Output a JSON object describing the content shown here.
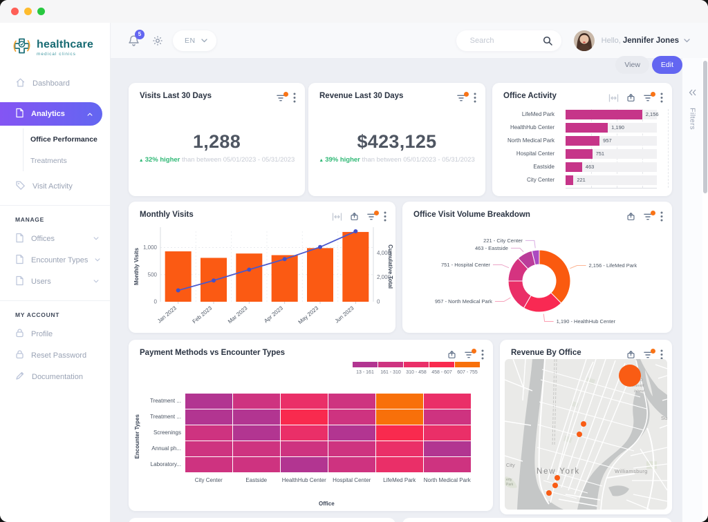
{
  "topbar": {
    "badge": "5",
    "language": "EN",
    "search_placeholder": "Search",
    "greeting": "Hello,",
    "user": "Jennifer Jones"
  },
  "toolbar": {
    "view": "View",
    "edit": "Edit"
  },
  "rail": {
    "label": "Filters"
  },
  "sidebar": {
    "logo_title": "healthcare",
    "logo_subtitle": "medical clinics",
    "items": [
      {
        "label": "Dashboard",
        "icon": "home"
      },
      {
        "label": "Analytics",
        "icon": "file",
        "active": true,
        "chevron": "up",
        "children": [
          {
            "label": "Office Performance",
            "active": true
          },
          {
            "label": "Treatments",
            "active": false
          }
        ]
      },
      {
        "label": "Visit Activity",
        "icon": "tag"
      }
    ],
    "sections": [
      {
        "header": "MANAGE",
        "items": [
          {
            "label": "Offices",
            "icon": "file",
            "chevron": "down"
          },
          {
            "label": "Encounter Types",
            "icon": "file",
            "chevron": "down"
          },
          {
            "label": "Users",
            "icon": "file",
            "chevron": "down"
          }
        ]
      },
      {
        "header": "MY ACCOUNT",
        "items": [
          {
            "label": "Profile",
            "icon": "lock"
          },
          {
            "label": "Reset Password",
            "icon": "lock"
          },
          {
            "label": "Documentation",
            "icon": "pencil"
          }
        ]
      }
    ]
  },
  "kpis": [
    {
      "title": "Visits Last 30 Days",
      "value": "1,288",
      "delta": "32% higher",
      "period": "than between 05/01/2023 - 05/31/2023"
    },
    {
      "title": "Revenue Last 30 Days",
      "value": "$423,125",
      "delta": "39% higher",
      "period": "than between 05/01/2023 - 05/31/2023"
    }
  ],
  "chart_data": [
    {
      "id": "office_activity",
      "type": "bar",
      "orientation": "horizontal",
      "title": "Office Activity",
      "categories": [
        "LifeMed Park",
        "HealthHub Center",
        "North Medical Park",
        "Hospital Center",
        "Eastside",
        "City Center"
      ],
      "values": [
        2156,
        1190,
        957,
        751,
        463,
        221
      ],
      "value_labels": [
        "2,156",
        "1,190",
        "957",
        "751",
        "463",
        "221"
      ],
      "bar_color": "#c63589",
      "xlim": [
        0,
        2880
      ],
      "grid": true
    },
    {
      "id": "monthly_visits",
      "type": "bar+line",
      "title": "Monthly Visits",
      "categories": [
        "Jan 2023",
        "Feb 2023",
        "Mar 2023",
        "Apr 2023",
        "May 2023",
        "Jun 2023"
      ],
      "series": [
        {
          "name": "Monthly Visits",
          "type": "bar",
          "values": [
            930,
            810,
            890,
            860,
            990,
            1288
          ],
          "color": "#fb5a13"
        },
        {
          "name": "Cumulative Total",
          "type": "line",
          "values": [
            930,
            1740,
            2630,
            3490,
            4480,
            5768
          ],
          "color": "#4a58cd"
        }
      ],
      "ylabel_left": "Monthly Visits",
      "ylabel_right": "Cumulative Total",
      "yticks_left": {
        "labels": [
          "0",
          "500",
          "1,000"
        ],
        "values": [
          0,
          500,
          1000
        ]
      },
      "yticks_right": {
        "labels": [
          "0",
          "2,000",
          "4,000"
        ],
        "values": [
          0,
          2000,
          4000
        ]
      },
      "ylim_left": [
        0,
        1300
      ],
      "ylim_right": [
        0,
        5770
      ]
    },
    {
      "id": "visit_breakdown",
      "type": "pie",
      "title": "Office Visit Volume Breakdown",
      "slices": [
        {
          "label": "2,156 - LifeMed Park",
          "value": 2156,
          "color": "#fa5a0f"
        },
        {
          "label": "1,190 - HealthHub Center",
          "value": 1190,
          "color": "#f92953"
        },
        {
          "label": "957 - North Medical Park",
          "value": 957,
          "color": "#ea2e67"
        },
        {
          "label": "751 - Hospital Center",
          "value": 751,
          "color": "#d53380"
        },
        {
          "label": "463 - Eastside",
          "value": 463,
          "color": "#bb3c9a"
        },
        {
          "label": "221 - City Center",
          "value": 221,
          "color": "#ab4ac1"
        }
      ]
    },
    {
      "id": "heatmap",
      "type": "heatmap",
      "title": "Payment Methods vs Encounter Types",
      "legend": [
        {
          "label": "13 - 161",
          "color": "#b23591"
        },
        {
          "label": "161 - 310",
          "color": "#ce3380"
        },
        {
          "label": "310 - 458",
          "color": "#ea2f68"
        },
        {
          "label": "458 - 607",
          "color": "#f92a4e"
        },
        {
          "label": "607 - 755",
          "color": "#f8700a"
        }
      ],
      "rows": [
        "Treatment ...",
        "Treatment ...",
        "Screenings",
        "Annual ph...",
        "Laboratory..."
      ],
      "cols": [
        "City Center",
        "Eastside",
        "HealthHub Center",
        "Hospital Center",
        "LifeMed Park",
        "North Medical Park"
      ],
      "cells": [
        [
          1,
          2,
          3,
          2,
          5,
          3
        ],
        [
          1,
          1,
          4,
          2,
          5,
          2
        ],
        [
          2,
          1,
          3,
          1,
          4,
          3
        ],
        [
          2,
          2,
          2,
          2,
          3,
          1
        ],
        [
          2,
          2,
          1,
          2,
          3,
          2
        ]
      ],
      "xlabel": "Office",
      "ylabel": "Encounter Types"
    },
    {
      "id": "revenue_map",
      "type": "map",
      "title": "Revenue By Office",
      "dot_color": "#f95c14",
      "points": [
        {
          "x": 181,
          "y": 24,
          "r": 16
        },
        {
          "x": 114,
          "y": 94,
          "r": 4
        },
        {
          "x": 108,
          "y": 109,
          "r": 4
        },
        {
          "x": 76,
          "y": 172,
          "r": 4
        },
        {
          "x": 73,
          "y": 183,
          "r": 4
        },
        {
          "x": 64,
          "y": 194,
          "r": 4
        }
      ],
      "labels": {
        "city": "New York",
        "district": "Williamsburg",
        "left_fragment": "y City",
        "right_fragment": "Su",
        "island1": "klin D",
        "island2": "osevelt",
        "island3": "Island",
        "park1": "erty",
        "park2": "Park"
      }
    }
  ]
}
